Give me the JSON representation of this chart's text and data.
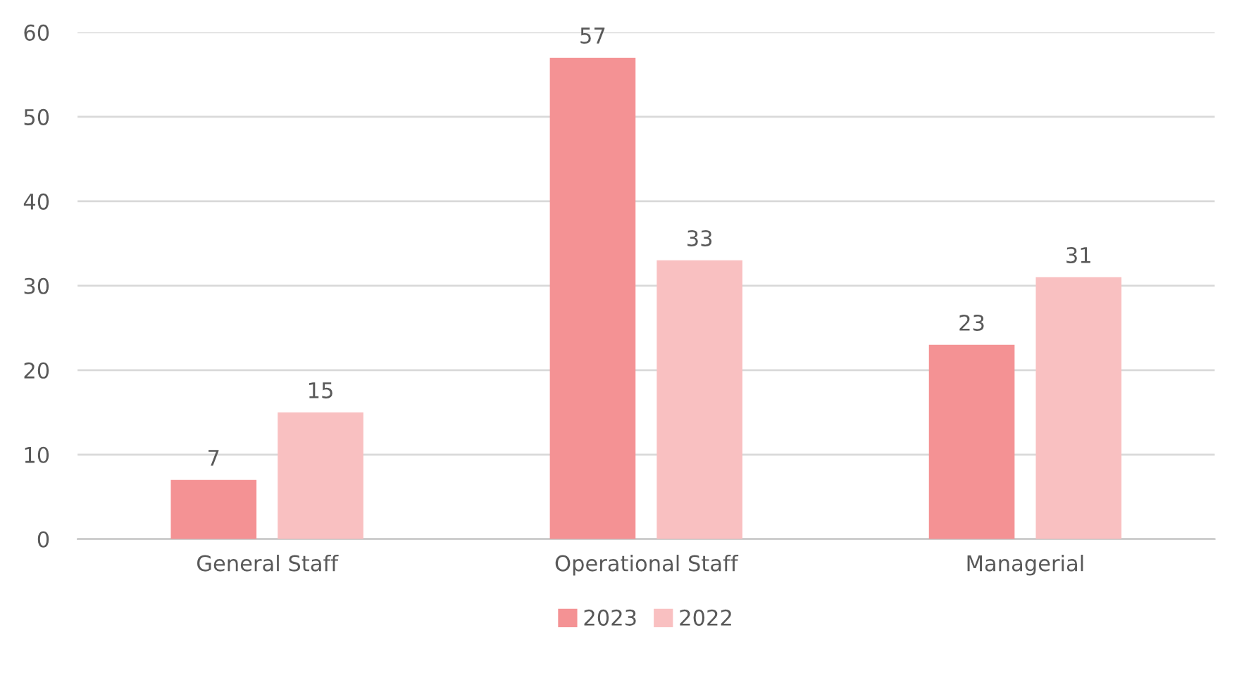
{
  "chart_data": {
    "type": "bar",
    "categories": [
      "General Staff",
      "Operational Staff",
      "Managerial"
    ],
    "series": [
      {
        "name": "2023",
        "color": "#f49294",
        "values": [
          7,
          57,
          23
        ]
      },
      {
        "name": "2022",
        "color": "#f9c0c1",
        "values": [
          15,
          33,
          31
        ]
      }
    ],
    "ylim": [
      0,
      60
    ],
    "yticks": [
      0,
      10,
      20,
      30,
      40,
      50,
      60
    ],
    "grid": "y",
    "legend": "bottom",
    "data_labels": true
  }
}
